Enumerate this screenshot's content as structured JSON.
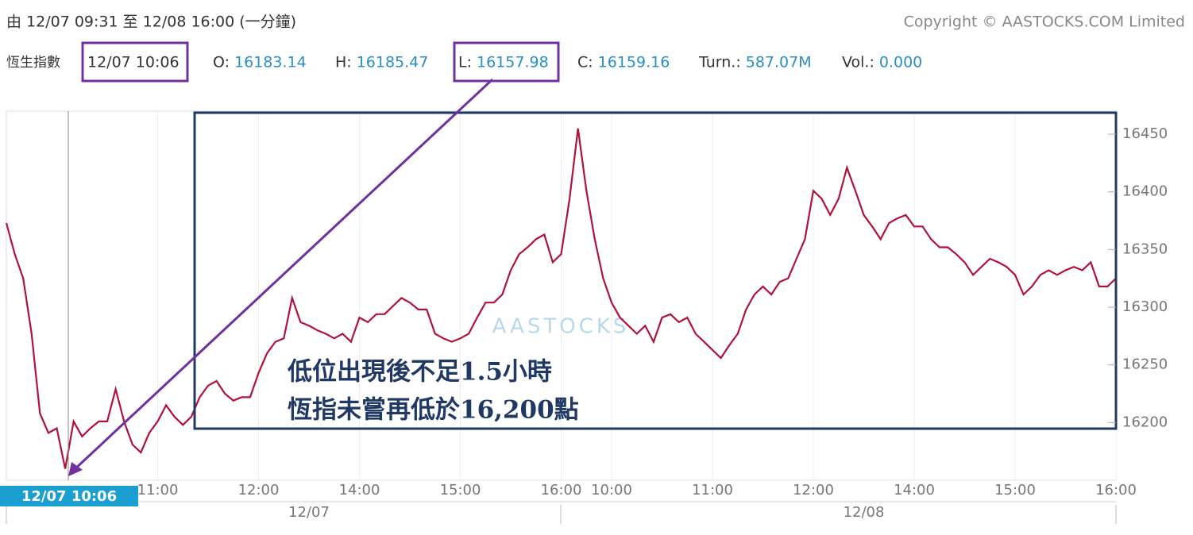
{
  "header": {
    "range": "由  12/07 09:31 至  12/08 16:00 (一分鐘)",
    "copyright": "Copyright © AASTOCKS.COM Limited",
    "index_name": "恆生指數",
    "time": "12/07 10:06",
    "quotes": [
      {
        "label": "O:",
        "value": "16183.14"
      },
      {
        "label": "H:",
        "value": "16185.47"
      },
      {
        "label": "L:",
        "value": "16157.98"
      },
      {
        "label": "C:",
        "value": "16159.16"
      },
      {
        "label": "Turn.:",
        "value": "587.07M"
      },
      {
        "label": "Vol.:",
        "value": "0.000"
      }
    ]
  },
  "chart_data": {
    "type": "line",
    "watermark": "AASTOCKS",
    "cursor_label": "12/07 10:06",
    "annotations": [
      "低位出現後不足1.5小時",
      "恆指未嘗再低於16,200點"
    ],
    "days": [
      {
        "label": "12/07",
        "at": 36
      },
      {
        "label": "12/08",
        "at": 102
      }
    ],
    "xlim": [
      0,
      132
    ],
    "xticks": [
      {
        "value": 18,
        "label": "11:00"
      },
      {
        "value": 30,
        "label": "12:00"
      },
      {
        "value": 42,
        "label": "14:00"
      },
      {
        "value": 54,
        "label": "15:00"
      },
      {
        "value": 66,
        "label": "16:00"
      },
      {
        "value": 72,
        "label": "10:00"
      },
      {
        "value": 84,
        "label": "11:00"
      },
      {
        "value": 96,
        "label": "12:00"
      },
      {
        "value": 108,
        "label": "14:00"
      },
      {
        "value": 120,
        "label": "15:00"
      },
      {
        "value": 132,
        "label": "16:00"
      }
    ],
    "ylim": [
      16150,
      16470
    ],
    "yticks": [
      16200,
      16250,
      16300,
      16350,
      16400,
      16450
    ],
    "grid": "x",
    "series": [
      {
        "color": "#b0123c",
        "values": [
          16373,
          16346,
          16325,
          16277,
          16208,
          16191,
          16195,
          16160,
          16201,
          16188,
          16195,
          16201,
          16201,
          16229,
          16201,
          16181,
          16174,
          16191,
          16201,
          16215,
          16205,
          16198,
          16205,
          16222,
          16232,
          16236,
          16225,
          16219,
          16222,
          16222,
          16243,
          16260,
          16270,
          16273,
          16308,
          16287,
          16284,
          16280,
          16277,
          16273,
          16277,
          16270,
          16291,
          16287,
          16294,
          16294,
          16301,
          16308,
          16304,
          16298,
          16298,
          16277,
          16273,
          16270,
          16273,
          16277,
          16291,
          16304,
          16304,
          16311,
          16332,
          16346,
          16352,
          16359,
          16363,
          16339,
          16346,
          16394,
          16455,
          16401,
          16359,
          16325,
          16304,
          16291,
          16284,
          16277,
          16284,
          16270,
          16291,
          16294,
          16287,
          16291,
          16277,
          16270,
          16263,
          16256,
          16267,
          16277,
          16298,
          16311,
          16318,
          16311,
          16322,
          16325,
          16342,
          16359,
          16401,
          16394,
          16380,
          16394,
          16421,
          16401,
          16380,
          16370,
          16359,
          16373,
          16377,
          16380,
          16370,
          16370,
          16359,
          16352,
          16352,
          16346,
          16339,
          16328,
          16335,
          16342,
          16339,
          16335,
          16328,
          16311,
          16318,
          16328,
          16332,
          16328,
          16332,
          16335,
          16332,
          16339,
          16318,
          16318,
          16325
        ]
      }
    ]
  }
}
